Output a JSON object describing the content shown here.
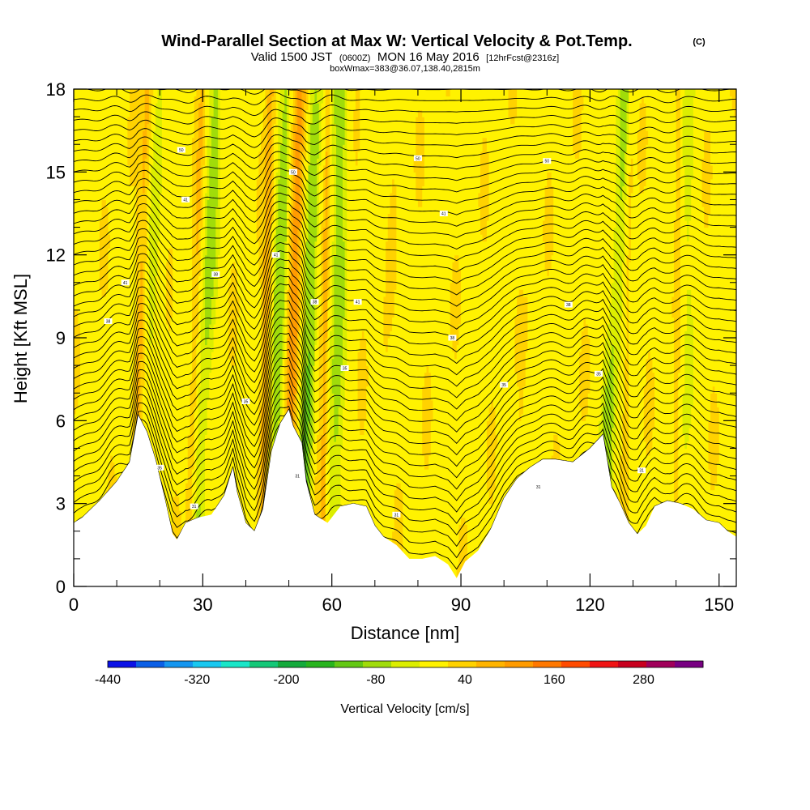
{
  "chart_data": {
    "type": "heatmap",
    "title": "Wind-Parallel Section at Max W: Vertical Velocity & Pot.Temp.",
    "title_mark": "(C)",
    "subtitle_parts": [
      "Valid 1500 JST",
      "(0600Z)",
      "MON 16 May 2016",
      "[12hrFcst@2316z]"
    ],
    "subtitle2": "boxWmax=383@36.07,138.40,2815m",
    "xlabel": "Distance [nm]",
    "ylabel": "Height [Kft MSL]",
    "xlim": [
      0,
      154
    ],
    "ylim": [
      0,
      18
    ],
    "x_ticks": [
      "0",
      "30",
      "60",
      "90",
      "120",
      "150"
    ],
    "y_ticks": [
      "0",
      "3",
      "6",
      "9",
      "12",
      "15",
      "18"
    ],
    "colorbar": {
      "label": "Vertical Velocity [cm/s]",
      "min": -440,
      "max": 360,
      "step": 40,
      "tick_labels": [
        "-440",
        "-320",
        "-200",
        "-80",
        "40",
        "160",
        "280"
      ],
      "colors": [
        "#0a12e6",
        "#0a5fe6",
        "#1496f0",
        "#19c8f0",
        "#19e6c8",
        "#14c878",
        "#14aa3c",
        "#28b41e",
        "#64c814",
        "#a0dc0a",
        "#dcee00",
        "#fff200",
        "#ffd200",
        "#ffb400",
        "#ff9b00",
        "#ff7800",
        "#ff4b00",
        "#f01414",
        "#c8001e",
        "#a0005a",
        "#780082"
      ]
    },
    "terrain": [
      [
        0,
        2.3
      ],
      [
        2,
        2.5
      ],
      [
        6,
        3.1
      ],
      [
        10,
        3.8
      ],
      [
        13,
        4.5
      ],
      [
        15,
        6.2
      ],
      [
        17,
        5.6
      ],
      [
        19,
        4.6
      ],
      [
        21,
        3.3
      ],
      [
        23,
        1.9
      ],
      [
        24,
        1.7
      ],
      [
        26,
        2.3
      ],
      [
        29,
        2.5
      ],
      [
        32,
        2.6
      ],
      [
        35,
        3.3
      ],
      [
        37,
        4.3
      ],
      [
        38,
        3.4
      ],
      [
        40,
        2.3
      ],
      [
        42,
        2.0
      ],
      [
        44,
        2.8
      ],
      [
        46,
        4.9
      ],
      [
        48,
        5.9
      ],
      [
        50,
        6.4
      ],
      [
        51,
        5.8
      ],
      [
        53,
        5.2
      ],
      [
        54,
        3.8
      ],
      [
        56,
        2.6
      ],
      [
        59,
        2.3
      ],
      [
        62,
        2.9
      ],
      [
        65,
        3.0
      ],
      [
        68,
        2.9
      ],
      [
        70,
        2.2
      ],
      [
        72,
        1.8
      ],
      [
        75,
        1.5
      ],
      [
        78,
        1.0
      ],
      [
        81,
        1.0
      ],
      [
        84,
        1.1
      ],
      [
        87,
        0.8
      ],
      [
        89,
        0.3
      ],
      [
        91,
        0.9
      ],
      [
        94,
        1.3
      ],
      [
        97,
        2.1
      ],
      [
        100,
        3.2
      ],
      [
        103,
        3.9
      ],
      [
        106,
        4.3
      ],
      [
        109,
        4.6
      ],
      [
        112,
        4.6
      ],
      [
        116,
        4.5
      ],
      [
        120,
        5.0
      ],
      [
        123,
        5.5
      ],
      [
        125,
        3.6
      ],
      [
        127,
        3.0
      ],
      [
        129,
        2.3
      ],
      [
        131,
        1.9
      ],
      [
        133,
        2.2
      ],
      [
        135,
        2.9
      ],
      [
        138,
        3.1
      ],
      [
        141,
        3.0
      ],
      [
        144,
        2.8
      ],
      [
        147,
        2.4
      ],
      [
        150,
        2.3
      ],
      [
        152,
        2.0
      ],
      [
        154,
        1.8
      ]
    ],
    "updrafts": [
      [
        15,
        2.6,
        0.9,
        2.2
      ],
      [
        27,
        2.6,
        0.7,
        1.4
      ],
      [
        44,
        2.0,
        0.9,
        2.0
      ],
      [
        50.3,
        2.6,
        1.2,
        3.4
      ],
      [
        56,
        1.6,
        1.4,
        2.6
      ],
      [
        58,
        1.0,
        0.4,
        1.6
      ],
      [
        70,
        5.0,
        0.5,
        0.3
      ],
      [
        103,
        6.0,
        0.5,
        0.2
      ],
      [
        128,
        1.4,
        0.5,
        1.0
      ],
      [
        140,
        0.8,
        0.5,
        1.2
      ]
    ],
    "downdrafts": [
      [
        16,
        2.6,
        1.5,
        -1.3
      ],
      [
        29,
        2.6,
        1.4,
        -1.8
      ],
      [
        47,
        2.2,
        1.6,
        -2.2
      ],
      [
        54,
        2.0,
        1.6,
        -3.8
      ],
      [
        60.5,
        1.0,
        1.4,
        -2.0
      ],
      [
        124,
        2.6,
        1.2,
        -1.8
      ],
      [
        142,
        0.5,
        1.4,
        -1.0
      ]
    ],
    "label_sets": [
      {
        "text": "41",
        "points": [
          [
            12,
            11
          ],
          [
            26,
            14
          ],
          [
            47,
            12
          ],
          [
            66,
            10.3
          ],
          [
            86,
            13.5
          ]
        ]
      },
      {
        "text": "50",
        "points": [
          [
            25,
            15.8
          ],
          [
            51,
            15
          ],
          [
            80,
            15.5
          ],
          [
            110,
            15.4
          ]
        ]
      },
      {
        "text": "35",
        "points": [
          [
            20,
            4.3
          ],
          [
            40,
            6.7
          ],
          [
            63,
            7.9
          ],
          [
            100,
            7.3
          ],
          [
            122,
            7.7
          ]
        ]
      },
      {
        "text": "31",
        "points": [
          [
            28,
            2.9
          ],
          [
            52,
            4.0
          ],
          [
            75,
            2.6
          ],
          [
            108,
            3.6
          ],
          [
            132,
            4.2
          ]
        ]
      },
      {
        "text": "38",
        "points": [
          [
            8,
            9.6
          ],
          [
            33,
            11.3
          ],
          [
            56,
            10.3
          ],
          [
            88,
            9.0
          ],
          [
            115,
            10.2
          ]
        ]
      }
    ]
  }
}
